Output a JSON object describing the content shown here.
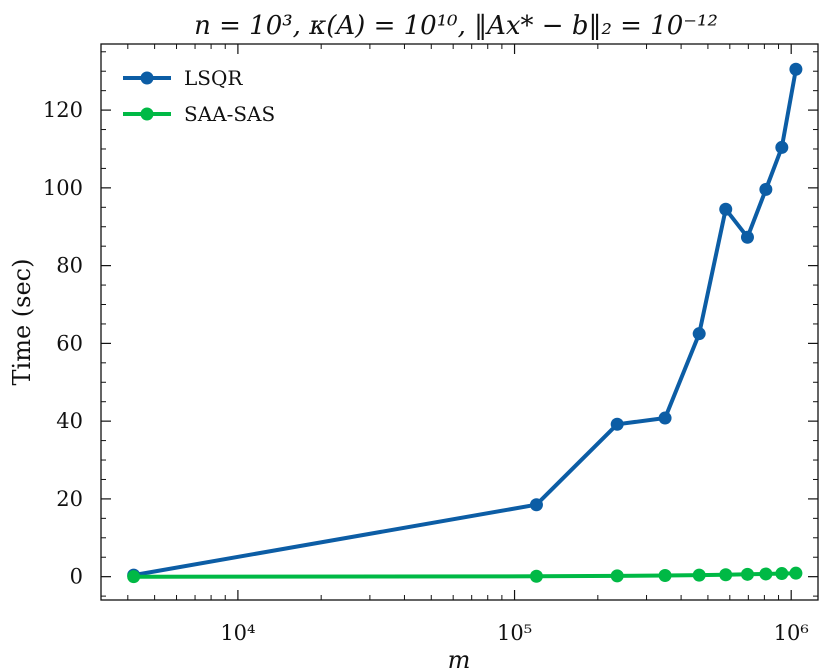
{
  "chart_data": {
    "type": "line",
    "title": "n = 10³, κ(A) = 10¹⁰, ‖Ax* − b‖₂ = 10⁻¹²",
    "xlabel": "m",
    "ylabel": "Time (sec)",
    "xscale": "log",
    "xlim": [
      3200,
      1250000
    ],
    "ylim": [
      -6,
      137
    ],
    "x_ticks": [
      {
        "value": 10000,
        "label": "10⁴"
      },
      {
        "value": 100000,
        "label": "10⁵"
      },
      {
        "value": 1000000,
        "label": "10⁶"
      }
    ],
    "y_ticks": [
      0,
      20,
      40,
      60,
      80,
      100,
      120
    ],
    "grid": false,
    "legend_position": "top-left",
    "series": [
      {
        "name": "LSQR",
        "color": "#0C5DA5",
        "x": [
          4200,
          120000,
          235000,
          350000,
          465000,
          580000,
          695000,
          810000,
          925000,
          1040000
        ],
        "y": [
          0.4,
          18.5,
          39.2,
          40.8,
          62.5,
          94.5,
          87.3,
          99.6,
          110.4,
          130.5
        ]
      },
      {
        "name": "SAA-SAS",
        "color": "#00B945",
        "x": [
          4200,
          120000,
          235000,
          350000,
          465000,
          580000,
          695000,
          810000,
          925000,
          1040000
        ],
        "y": [
          0.0,
          0.1,
          0.2,
          0.3,
          0.4,
          0.5,
          0.6,
          0.7,
          0.8,
          0.9
        ]
      }
    ]
  }
}
